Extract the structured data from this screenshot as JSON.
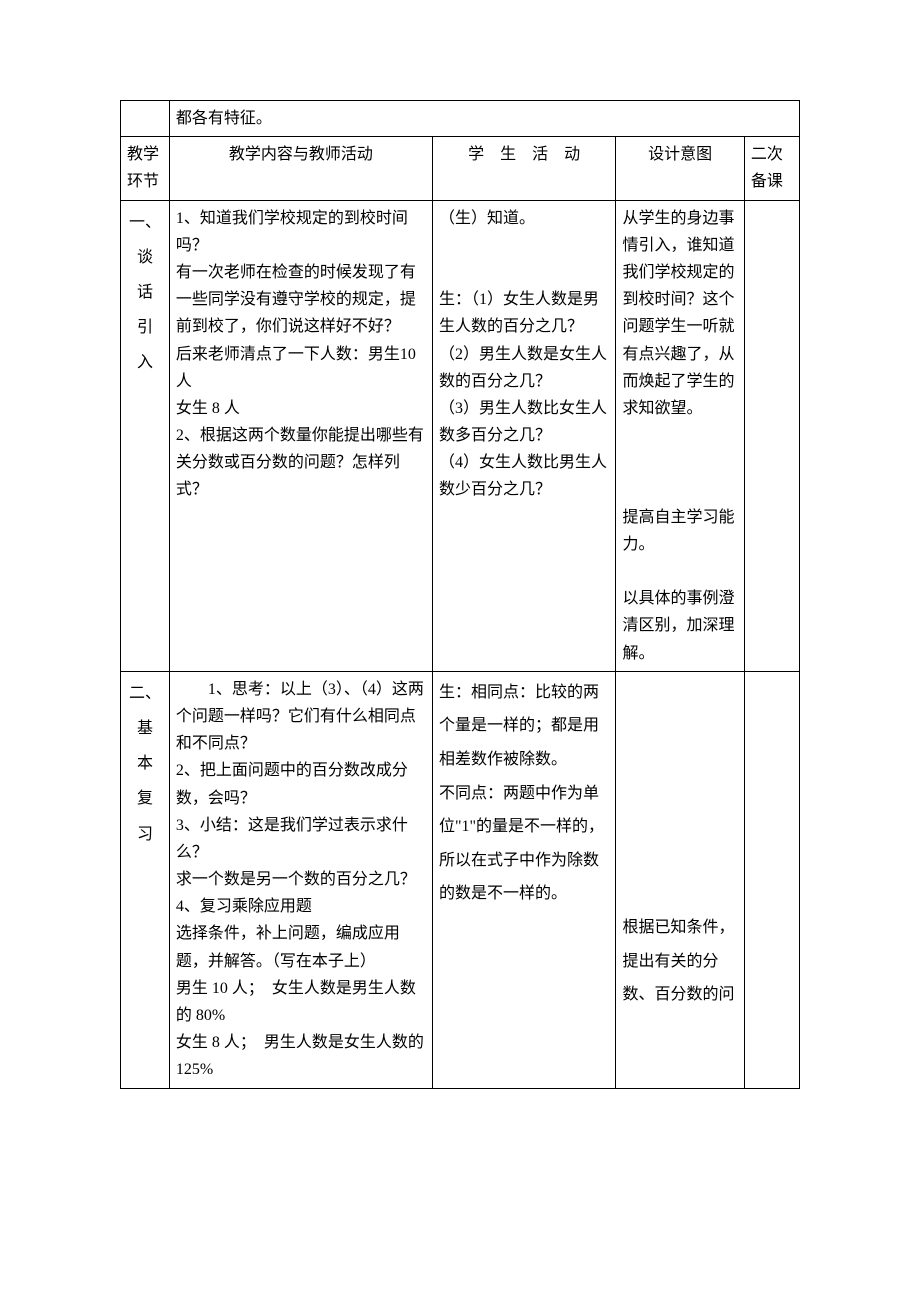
{
  "table": {
    "top_note": "都各有特征。",
    "header": {
      "col1": "教学环节",
      "col2": "教学内容与教师活动",
      "col3": "学　生　活　动",
      "col4": "设计意图",
      "col5": "二次备课"
    },
    "rows": [
      {
        "label": "一、谈话引入",
        "teacher": "1、知道我们学校规定的到校时间吗？\n有一次老师在检查的时候发现了有一些同学没有遵守学校的规定，提前到校了，你们说这样好不好？\n后来老师清点了一下人数：男生10 人\n女生 8 人\n2、根据这两个数量你能提出哪些有关分数或百分数的问题？怎样列式？",
        "student": "（生）知道。\n\n\n生：（1）女生人数是男生人数的百分之几？\n（2）男生人数是女生人数的百分之几？\n（3）男生人数比女生人数多百分之几？\n（4）女生人数比男生人数少百分之几？",
        "intent": "从学生的身边事情引入，谁知道我们学校规定的到校时间？这个问题学生一听就有点兴趣了，从而焕起了学生的求知欲望。\n\n\n\n提高自主学习能力。\n\n以具体的事例澄清区别，加深理解。",
        "note": ""
      },
      {
        "label": "二、基本复习",
        "teacher": "　　1、思考：以上（3）、（4）这两个问题一样吗？它们有什么相同点和不同点？\n2、把上面问题中的百分数改成分数，会吗？\n3、小结：这是我们学过表示求什么？\n求一个数是另一个数的百分之几？\n4、复习乘除应用题\n选择条件，补上问题，编成应用题，并解答。（写在本子上）\n男生 10 人；　女生人数是男生人数的 80%\n女生 8 人；　男生人数是女生人数的 125%",
        "student": "生：相同点：比较的两个量是一样的；都是用相差数作被除数。\n不同点：两题中作为单位\"1\"的量是不一样的，所以在式子中作为除数的数是不一样的。",
        "intent": "\n\n\n\n\n\n\n根据已知条件，提出有关的分数、百分数的问",
        "note": ""
      }
    ]
  }
}
